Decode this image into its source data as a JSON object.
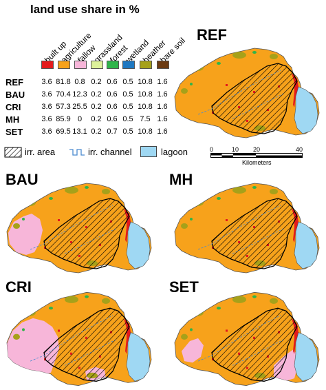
{
  "title": "land use share in %",
  "categories": [
    {
      "label": "built up",
      "color": "#e31a1c"
    },
    {
      "label": "agriculture",
      "color": "#f7a21b"
    },
    {
      "label": "fallow",
      "color": "#f7b6d9"
    },
    {
      "label": "grassland",
      "color": "#ddf29a"
    },
    {
      "label": "forest",
      "color": "#2fb44a"
    },
    {
      "label": "wetland",
      "color": "#1f78c1"
    },
    {
      "label": "heather",
      "color": "#a6a11a"
    },
    {
      "label": "bare soil",
      "color": "#6b3a12"
    }
  ],
  "rows": [
    {
      "name": "REF",
      "values": [
        "3.6",
        "81.8",
        "0.8",
        "0.2",
        "0.6",
        "0.5",
        "10.8",
        "1.6"
      ]
    },
    {
      "name": "BAU",
      "values": [
        "3.6",
        "70.4",
        "12.3",
        "0.2",
        "0.6",
        "0.5",
        "10.8",
        "1.6"
      ]
    },
    {
      "name": "CRI",
      "values": [
        "3.6",
        "57.3",
        "25.5",
        "0.2",
        "0.6",
        "0.5",
        "10.8",
        "1.6"
      ]
    },
    {
      "name": "MH",
      "values": [
        "3.6",
        "85.9",
        "0",
        "0.2",
        "0.6",
        "0.5",
        "7.5",
        "1.6"
      ]
    },
    {
      "name": "SET",
      "values": [
        "3.6",
        "69.5",
        "13.1",
        "0.2",
        "0.7",
        "0.5",
        "10.8",
        "1.6"
      ]
    }
  ],
  "legend": {
    "irr_area": "irr. area",
    "irr_channel": "irr. channel",
    "lagoon": "lagoon"
  },
  "scale": {
    "ticks": [
      "0",
      "10",
      "20",
      "40"
    ],
    "unit": "Kilometers"
  },
  "maps": {
    "ref": "REF",
    "bau": "BAU",
    "mh": "MH",
    "cri": "CRI",
    "set": "SET"
  },
  "colors": {
    "agriculture": "#f7a21b",
    "fallow": "#f7b6d9",
    "builtup": "#e31a1c",
    "lagoon": "#9fd8f3",
    "forest": "#2fb44a",
    "heather": "#a6a11a"
  }
}
